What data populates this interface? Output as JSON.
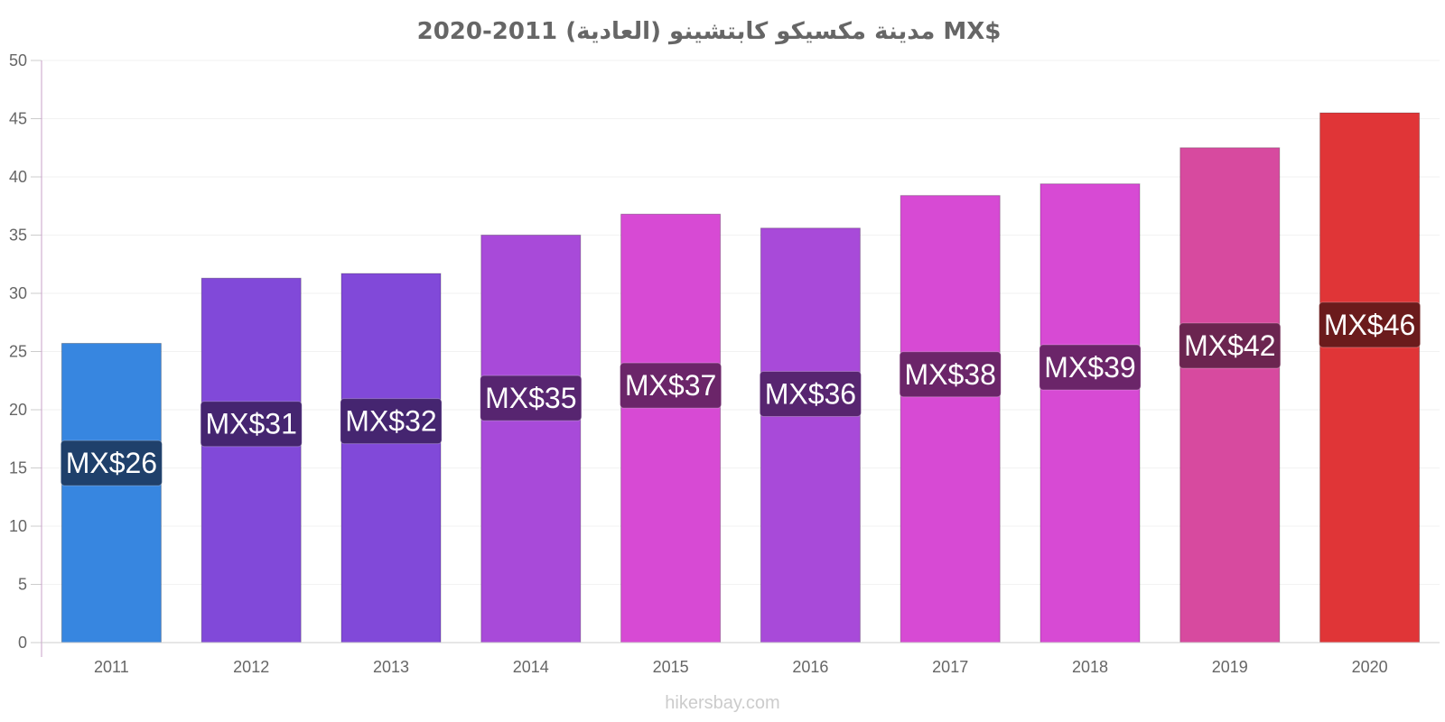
{
  "chart_data": {
    "type": "bar",
    "title": "مدينة مكسيكو كابتشينو (العادية) 2011-2020 MX$",
    "categories": [
      "2011",
      "2012",
      "2013",
      "2014",
      "2015",
      "2016",
      "2017",
      "2018",
      "2019",
      "2020"
    ],
    "values": [
      25.7,
      31.3,
      31.7,
      35.0,
      36.8,
      35.6,
      38.4,
      39.4,
      42.5,
      45.5
    ],
    "data_labels": [
      "MX$26",
      "MX$31",
      "MX$32",
      "MX$35",
      "MX$37",
      "MX$36",
      "MX$38",
      "MX$39",
      "MX$42",
      "MX$46"
    ],
    "ylim": [
      0,
      50
    ],
    "yticks": [
      "0",
      "5",
      "10",
      "15",
      "20",
      "25",
      "30",
      "35",
      "40",
      "45",
      "50"
    ],
    "xlabel": "",
    "ylabel": "",
    "grid": true,
    "bar_colors": [
      "#3786e0",
      "#8149d9",
      "#8149d9",
      "#a84ad9",
      "#d74ad4",
      "#a84ad9",
      "#d74ad4",
      "#d74ad4",
      "#d74a9f",
      "#e03537"
    ],
    "label_bg_colors": [
      "#1f406b",
      "#452570",
      "#452570",
      "#572570",
      "#6b2569",
      "#572570",
      "#6b2569",
      "#6b2569",
      "#6b2550",
      "#6b1b1c"
    ]
  },
  "footer": {
    "source": "hikersbay.com"
  }
}
